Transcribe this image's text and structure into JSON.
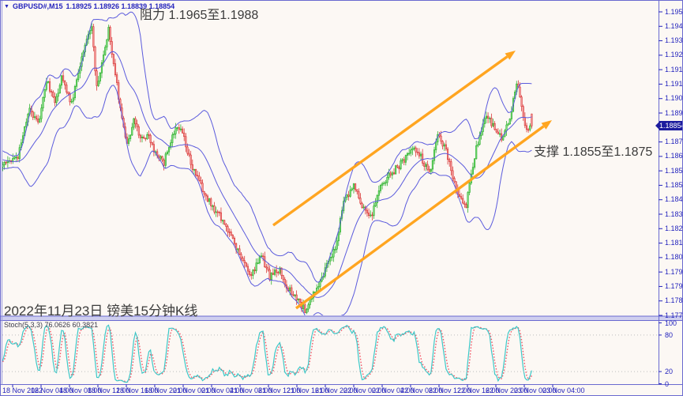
{
  "header": {
    "symbol": "GBPUSD#,M15",
    "quotes": "1.18925 1.18926 1.18839 1.18854",
    "dropdown_icon": "▼"
  },
  "annotations": {
    "resistance": "阻力 1.1965至1.1988",
    "support": "支撑 1.1855至1.1875",
    "caption": "2022年11月23日 镑美15分钟K线"
  },
  "price_axis": {
    "ticks": [
      "1.19525",
      "1.19440",
      "1.19355",
      "1.19270",
      "1.19185",
      "1.19100",
      "1.19015",
      "1.18930",
      "1.18760",
      "1.18675",
      "1.18590",
      "1.18505",
      "1.18420",
      "1.18335",
      "1.18250",
      "1.18165",
      "1.18080",
      "1.17995",
      "1.17910",
      "1.17825",
      "1.17740"
    ],
    "current_price": "1.18854"
  },
  "time_axis": {
    "labels": [
      "18 Nov 2022",
      "18 Nov 04:00",
      "18 Nov 08:00",
      "18 Nov 12:00",
      "18 Nov 16:00",
      "18 Nov 20:00",
      "21 Nov 00:00",
      "21 Nov 04:00",
      "21 Nov 08:00",
      "21 Nov 12:00",
      "21 Nov 16:00",
      "21 Nov 20:00",
      "22 Nov 00:00",
      "22 Nov 04:00",
      "22 Nov 08:00",
      "22 Nov 12:00",
      "22 Nov 16:00",
      "22 Nov 20:00",
      "23 Nov 00:00",
      "23 Nov 04:00"
    ]
  },
  "stoch_panel": {
    "label": "Stoch(5,3,3) 76.0626 60.3821",
    "scale": [
      "100",
      "80",
      "20",
      "0"
    ]
  },
  "colors": {
    "background": "#fcf8f4",
    "frame": "#6a6ad0",
    "axis_text": "#2424bd",
    "bull_stroke": "#18a818",
    "bull_fill": "#7ddc7d",
    "bear_stroke": "#d42020",
    "bear_fill": "#f49a9a",
    "bollinger": "#5b5bdd",
    "channel": "#ffa520",
    "stoch_k": "#3cc8c8",
    "stoch_d": "#f05868",
    "level_dots": "#bdbdbd",
    "price_tag_bg": "#1c1c9e"
  },
  "chart_data": {
    "type": "candlestick",
    "title": "GBPUSD#,M15",
    "symbol": "GBPUSD#",
    "timeframe": "M15",
    "ohlc_display": {
      "open": 1.18925,
      "high": 1.18926,
      "low": 1.18839,
      "close": 1.18854
    },
    "price_range": {
      "top": 1.19525,
      "bottom": 1.1774,
      "tick_step": 0.00085
    },
    "x_range": {
      "start_label": "18 Nov 2022",
      "end_label": "23 Nov 04:00",
      "label_interval_hours": 4
    },
    "candles_n": 316,
    "close_path_anchors": [
      [
        -24,
        1.1872
      ],
      [
        0,
        1.1862
      ],
      [
        5,
        1.1865
      ],
      [
        9,
        1.1868
      ],
      [
        16,
        1.1896
      ],
      [
        21,
        1.1886
      ],
      [
        26,
        1.1913
      ],
      [
        31,
        1.1898
      ],
      [
        35,
        1.1915
      ],
      [
        41,
        1.1898
      ],
      [
        48,
        1.193
      ],
      [
        53,
        1.1945
      ],
      [
        56,
        1.1907
      ],
      [
        63,
        1.1943
      ],
      [
        67,
        1.1915
      ],
      [
        71,
        1.189
      ],
      [
        74,
        1.1873
      ],
      [
        78,
        1.189
      ],
      [
        81,
        1.188
      ],
      [
        87,
        1.1878
      ],
      [
        92,
        1.1868
      ],
      [
        96,
        1.1864
      ],
      [
        103,
        1.1886
      ],
      [
        107,
        1.1882
      ],
      [
        113,
        1.186
      ],
      [
        119,
        1.1848
      ],
      [
        125,
        1.1838
      ],
      [
        131,
        1.183
      ],
      [
        136,
        1.182
      ],
      [
        142,
        1.1807
      ],
      [
        148,
        1.1797
      ],
      [
        154,
        1.1809
      ],
      [
        159,
        1.1797
      ],
      [
        165,
        1.1801
      ],
      [
        169,
        1.1791
      ],
      [
        175,
        1.1783
      ],
      [
        180,
        1.1777
      ],
      [
        186,
        1.1789
      ],
      [
        192,
        1.1801
      ],
      [
        198,
        1.1813
      ],
      [
        203,
        1.1841
      ],
      [
        209,
        1.1851
      ],
      [
        214,
        1.1837
      ],
      [
        219,
        1.1831
      ],
      [
        225,
        1.1849
      ],
      [
        231,
        1.1857
      ],
      [
        237,
        1.1863
      ],
      [
        244,
        1.1873
      ],
      [
        249,
        1.1867
      ],
      [
        254,
        1.1857
      ],
      [
        259,
        1.1881
      ],
      [
        264,
        1.1871
      ],
      [
        270,
        1.1847
      ],
      [
        276,
        1.1839
      ],
      [
        282,
        1.1873
      ],
      [
        288,
        1.1893
      ],
      [
        292,
        1.1885
      ],
      [
        297,
        1.1879
      ],
      [
        302,
        1.1891
      ],
      [
        306,
        1.1911
      ],
      [
        308,
        1.1903
      ],
      [
        310,
        1.1891
      ],
      [
        312,
        1.1882
      ],
      [
        314,
        1.1886
      ],
      [
        315,
        1.18854
      ]
    ],
    "indicators": {
      "bollinger": {
        "period": 20,
        "deviation": 2
      },
      "stochastic": {
        "name": "Stoch(5,3,3)",
        "k_value": 76.0626,
        "d_value": 60.3821,
        "levels": [
          80,
          20
        ],
        "scale": [
          100,
          80,
          20,
          0
        ]
      }
    },
    "overlays": {
      "channel_lines": [
        {
          "x1": 345,
          "y1": 284,
          "x2": 652,
          "y2": 63
        },
        {
          "x1": 374,
          "y1": 389,
          "x2": 698,
          "y2": 151
        }
      ],
      "resistance_zone": [
        1.1965,
        1.1988
      ],
      "support_zone": [
        1.1855,
        1.1875
      ]
    }
  },
  "layout_text": {
    "zero_corner": "0"
  }
}
